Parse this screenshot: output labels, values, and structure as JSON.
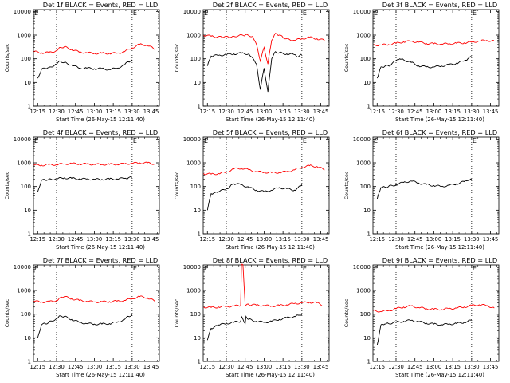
{
  "chart_data": [
    {
      "type": "line",
      "title": "Det 1f BLACK = Events, RED = LLD",
      "xlabel": "Start Time (26-May-15 12:11:40)",
      "ylabel": "Counts/sec",
      "x_ticks": [
        "12:15",
        "12:30",
        "12:45",
        "13:00",
        "13:15",
        "13:30",
        "13:45"
      ],
      "y_ticks": [
        "1",
        "10",
        "100",
        "1000",
        "10000"
      ],
      "ylim": [
        1,
        12000
      ],
      "y_scale": "log",
      "markers": [
        {
          "time": "12:30",
          "label": ""
        },
        {
          "time": "13:30",
          "label": "E"
        }
      ],
      "start_label": "E",
      "series": [
        {
          "name": "RED = LLD",
          "color": "#ff0000",
          "t": [
            12.2,
            12.3,
            12.4,
            12.5,
            12.55,
            12.6,
            12.7,
            12.8,
            12.9,
            13.0,
            13.1,
            13.2,
            13.3,
            13.4,
            13.5,
            13.6,
            13.7,
            13.8
          ],
          "values": [
            200,
            180,
            180,
            220,
            300,
            320,
            250,
            190,
            180,
            170,
            170,
            170,
            170,
            200,
            290,
            400,
            380,
            250
          ]
        },
        {
          "name": "BLACK = Events",
          "color": "#000000",
          "t": [
            12.25,
            12.3,
            12.35,
            12.4,
            12.5,
            12.55,
            12.6,
            12.7,
            12.8,
            12.9,
            13.0,
            13.1,
            13.2,
            13.3,
            13.4,
            13.45,
            13.5
          ],
          "values": [
            15,
            35,
            40,
            42,
            60,
            80,
            70,
            55,
            40,
            40,
            38,
            38,
            35,
            40,
            55,
            75,
            90
          ]
        }
      ]
    },
    {
      "type": "line",
      "title": "Det 2f BLACK = Events, RED = LLD",
      "xlabel": "Start Time (26-May-15 12:11:40)",
      "ylabel": "Counts/sec",
      "x_ticks": [
        "12:15",
        "12:30",
        "12:45",
        "13:00",
        "13:15",
        "13:30",
        "13:45"
      ],
      "y_ticks": [
        "1",
        "10",
        "100",
        "1000",
        "10000"
      ],
      "ylim": [
        1,
        12000
      ],
      "y_scale": "log",
      "markers": [
        {
          "time": "12:30",
          "label": ""
        },
        {
          "time": "13:30",
          "label": "E"
        }
      ],
      "start_label": "E",
      "series": [
        {
          "name": "RED = LLD",
          "color": "#ff0000",
          "t": [
            12.2,
            12.3,
            12.45,
            12.6,
            12.75,
            12.85,
            12.9,
            12.95,
            13.0,
            13.05,
            13.1,
            13.15,
            13.2,
            13.25,
            13.3,
            13.4,
            13.5,
            13.6,
            13.7,
            13.8
          ],
          "values": [
            1000,
            900,
            800,
            900,
            1000,
            900,
            400,
            80,
            300,
            60,
            600,
            1200,
            1000,
            800,
            700,
            600,
            700,
            800,
            700,
            600
          ]
        },
        {
          "name": "BLACK = Events",
          "color": "#000000",
          "t": [
            12.25,
            12.3,
            12.4,
            12.5,
            12.6,
            12.7,
            12.8,
            12.9,
            12.95,
            13.0,
            13.05,
            13.1,
            13.15,
            13.2,
            13.3,
            13.4,
            13.45,
            13.5
          ],
          "values": [
            50,
            130,
            140,
            150,
            160,
            170,
            160,
            60,
            5,
            40,
            4,
            100,
            200,
            180,
            160,
            150,
            120,
            150
          ]
        }
      ]
    },
    {
      "type": "line",
      "title": "Det 3f BLACK = Events, RED = LLD",
      "xlabel": "Start Time (26-May-15 12:11:40)",
      "ylabel": "Counts/sec",
      "x_ticks": [
        "12:15",
        "12:30",
        "12:45",
        "13:00",
        "13:15",
        "13:30",
        "13:45"
      ],
      "y_ticks": [
        "1",
        "10",
        "100",
        "1000",
        "10000"
      ],
      "ylim": [
        1,
        12000
      ],
      "y_scale": "log",
      "markers": [
        {
          "time": "12:30",
          "label": ""
        },
        {
          "time": "13:30",
          "label": "E"
        }
      ],
      "start_label": "E",
      "series": [
        {
          "name": "RED = LLD",
          "color": "#ff0000",
          "t": [
            12.2,
            12.3,
            12.4,
            12.5,
            12.6,
            12.7,
            12.8,
            12.9,
            13.0,
            13.1,
            13.2,
            13.3,
            13.4,
            13.5,
            13.6,
            13.7,
            13.8
          ],
          "values": [
            380,
            380,
            400,
            450,
            520,
            550,
            500,
            450,
            430,
            420,
            430,
            450,
            470,
            500,
            560,
            600,
            550
          ]
        },
        {
          "name": "BLACK = Events",
          "color": "#000000",
          "t": [
            12.25,
            12.3,
            12.35,
            12.4,
            12.5,
            12.55,
            12.6,
            12.7,
            12.8,
            12.9,
            13.0,
            13.1,
            13.2,
            13.3,
            13.4,
            13.45,
            13.5
          ],
          "values": [
            15,
            45,
            48,
            50,
            80,
            100,
            90,
            70,
            50,
            45,
            45,
            50,
            55,
            65,
            80,
            100,
            120
          ]
        }
      ]
    },
    {
      "type": "line",
      "title": "Det 4f BLACK = Events, RED = LLD",
      "xlabel": "Start Time (26-May-15 12:11:40)",
      "ylabel": "Counts/sec",
      "x_ticks": [
        "12:15",
        "12:30",
        "12:45",
        "13:00",
        "13:15",
        "13:30",
        "13:45"
      ],
      "y_ticks": [
        "1",
        "10",
        "100",
        "1000",
        "10000"
      ],
      "ylim": [
        1,
        12000
      ],
      "y_scale": "log",
      "markers": [
        {
          "time": "12:30",
          "label": ""
        },
        {
          "time": "13:30",
          "label": "E"
        }
      ],
      "start_label": "E",
      "series": [
        {
          "name": "RED = LLD",
          "color": "#ff0000",
          "t": [
            12.2,
            12.3,
            12.4,
            12.5,
            12.6,
            12.7,
            12.8,
            12.9,
            13.0,
            13.1,
            13.2,
            13.3,
            13.4,
            13.5,
            13.6,
            13.7,
            13.8
          ],
          "values": [
            800,
            800,
            820,
            850,
            900,
            920,
            900,
            880,
            860,
            850,
            860,
            880,
            900,
            950,
            1000,
            980,
            900
          ]
        },
        {
          "name": "BLACK = Events",
          "color": "#000000",
          "t": [
            12.25,
            12.3,
            12.35,
            12.4,
            12.5,
            12.6,
            12.7,
            12.8,
            12.9,
            13.0,
            13.1,
            13.2,
            13.3,
            13.4,
            13.45,
            13.5
          ],
          "values": [
            60,
            180,
            190,
            200,
            210,
            230,
            220,
            210,
            205,
            200,
            200,
            205,
            210,
            220,
            230,
            240
          ]
        }
      ]
    },
    {
      "type": "line",
      "title": "Det 5f BLACK = Events, RED = LLD",
      "xlabel": "Start Time (26-May-15 12:11:40)",
      "ylabel": "Counts/sec",
      "x_ticks": [
        "12:15",
        "12:30",
        "12:45",
        "13:00",
        "13:15",
        "13:30",
        "13:45"
      ],
      "y_ticks": [
        "1",
        "10",
        "100",
        "1000",
        "10000"
      ],
      "ylim": [
        1,
        12000
      ],
      "y_scale": "log",
      "markers": [
        {
          "time": "12:30",
          "label": ""
        },
        {
          "time": "13:30",
          "label": "E"
        }
      ],
      "start_label": "E",
      "series": [
        {
          "name": "RED = LLD",
          "color": "#ff0000",
          "t": [
            12.2,
            12.3,
            12.4,
            12.5,
            12.6,
            12.7,
            12.8,
            12.9,
            13.0,
            13.1,
            13.2,
            13.3,
            13.4,
            13.5,
            13.6,
            13.7,
            13.8
          ],
          "values": [
            350,
            330,
            350,
            400,
            550,
            600,
            500,
            420,
            400,
            380,
            390,
            420,
            500,
            650,
            750,
            700,
            500
          ]
        },
        {
          "name": "BLACK = Events",
          "color": "#000000",
          "t": [
            12.25,
            12.3,
            12.35,
            12.4,
            12.5,
            12.55,
            12.6,
            12.7,
            12.8,
            12.9,
            13.0,
            13.1,
            13.2,
            13.3,
            13.4,
            13.45,
            13.5
          ],
          "values": [
            10,
            50,
            55,
            60,
            80,
            100,
            130,
            120,
            90,
            70,
            60,
            70,
            90,
            80,
            70,
            90,
            120
          ]
        }
      ]
    },
    {
      "type": "line",
      "title": "Det 6f BLACK = Events, RED = LLD",
      "xlabel": "Start Time (26-May-15 12:11:40)",
      "ylabel": "Counts/sec",
      "x_ticks": [
        "12:15",
        "12:30",
        "12:45",
        "13:00",
        "13:15",
        "13:30",
        "13:45"
      ],
      "y_ticks": [
        "1",
        "10",
        "100",
        "1000",
        "10000"
      ],
      "ylim": [
        1,
        12000
      ],
      "y_scale": "log",
      "markers": [
        {
          "time": "12:30",
          "label": ""
        },
        {
          "time": "13:30",
          "label": "E"
        }
      ],
      "start_label": "E",
      "series": [
        {
          "name": "BLACK = Events",
          "color": "#000000",
          "t": [
            12.25,
            12.3,
            12.35,
            12.4,
            12.5,
            12.6,
            12.7,
            12.8,
            12.9,
            13.0,
            13.1,
            13.2,
            13.3,
            13.4,
            13.45,
            13.5
          ],
          "values": [
            30,
            90,
            95,
            100,
            120,
            150,
            170,
            140,
            120,
            110,
            100,
            110,
            130,
            160,
            180,
            200
          ]
        }
      ]
    },
    {
      "type": "line",
      "title": "Det 7f BLACK = Events, RED = LLD",
      "xlabel": "Start Time (26-May-15 12:11:40)",
      "ylabel": "Counts/sec",
      "x_ticks": [
        "12:15",
        "12:30",
        "12:45",
        "13:00",
        "13:15",
        "13:30",
        "13:45"
      ],
      "y_ticks": [
        "1",
        "10",
        "100",
        "1000",
        "10000"
      ],
      "ylim": [
        1,
        12000
      ],
      "y_scale": "log",
      "markers": [
        {
          "time": "12:30",
          "label": ""
        },
        {
          "time": "13:30",
          "label": "E"
        }
      ],
      "start_label": "E",
      "series": [
        {
          "name": "RED = LLD",
          "color": "#ff0000",
          "t": [
            12.2,
            12.3,
            12.4,
            12.5,
            12.55,
            12.6,
            12.7,
            12.8,
            12.9,
            13.0,
            13.1,
            13.2,
            13.3,
            13.4,
            13.5,
            13.6,
            13.7,
            13.8
          ],
          "values": [
            350,
            330,
            330,
            380,
            500,
            550,
            450,
            380,
            350,
            330,
            330,
            340,
            350,
            380,
            450,
            550,
            500,
            350
          ]
        },
        {
          "name": "BLACK = Events",
          "color": "#000000",
          "t": [
            12.25,
            12.3,
            12.35,
            12.4,
            12.5,
            12.55,
            12.6,
            12.7,
            12.8,
            12.9,
            13.0,
            13.1,
            13.2,
            13.3,
            13.4,
            13.45,
            13.5
          ],
          "values": [
            10,
            35,
            40,
            45,
            65,
            85,
            80,
            60,
            45,
            40,
            38,
            38,
            40,
            45,
            60,
            80,
            95
          ]
        }
      ]
    },
    {
      "type": "line",
      "title": "Det 8f BLACK = Events, RED = LLD",
      "xlabel": "Start Time (26-May-15 12:11:40)",
      "ylabel": "Counts/sec",
      "x_ticks": [
        "12:15",
        "12:30",
        "12:45",
        "13:00",
        "13:15",
        "13:30",
        "13:45"
      ],
      "y_ticks": [
        "1",
        "10",
        "100",
        "1000",
        "10000"
      ],
      "ylim": [
        1,
        12000
      ],
      "y_scale": "log",
      "markers": [
        {
          "time": "12:30",
          "label": ""
        },
        {
          "time": "13:30",
          "label": "E"
        }
      ],
      "start_label": "E",
      "series": [
        {
          "name": "RED = LLD",
          "color": "#ff0000",
          "t": [
            12.2,
            12.3,
            12.4,
            12.5,
            12.6,
            12.69,
            12.7,
            12.72,
            12.75,
            12.76,
            12.8,
            12.9,
            13.0,
            13.1,
            13.2,
            13.3,
            13.4,
            13.5,
            13.6,
            13.7,
            13.8
          ],
          "values": [
            200,
            190,
            200,
            210,
            220,
            230,
            12000,
            12000,
            230,
            240,
            250,
            240,
            230,
            220,
            230,
            250,
            280,
            300,
            320,
            300,
            220
          ]
        },
        {
          "name": "BLACK = Events",
          "color": "#000000",
          "t": [
            12.25,
            12.3,
            12.35,
            12.4,
            12.5,
            12.6,
            12.69,
            12.7,
            12.75,
            12.76,
            12.8,
            12.9,
            13.0,
            13.1,
            13.2,
            13.3,
            13.4,
            13.45,
            13.5
          ],
          "values": [
            8,
            25,
            30,
            35,
            40,
            45,
            50,
            80,
            40,
            80,
            60,
            50,
            45,
            50,
            60,
            70,
            80,
            90,
            100
          ]
        }
      ]
    },
    {
      "type": "line",
      "title": "Det 9f BLACK = Events, RED = LLD",
      "xlabel": "Start Time (26-May-15 12:11:40)",
      "ylabel": "Counts/sec",
      "x_ticks": [
        "12:15",
        "12:30",
        "12:45",
        "13:00",
        "13:15",
        "13:30",
        "13:45"
      ],
      "y_ticks": [
        "1",
        "10",
        "100",
        "1000",
        "10000"
      ],
      "ylim": [
        1,
        12000
      ],
      "y_scale": "log",
      "markers": [
        {
          "time": "12:30",
          "label": ""
        },
        {
          "time": "13:30",
          "label": "E"
        }
      ],
      "start_label": "E",
      "series": [
        {
          "name": "RED = LLD",
          "color": "#ff0000",
          "t": [
            12.2,
            12.3,
            12.4,
            12.5,
            12.6,
            12.7,
            12.8,
            12.9,
            13.0,
            13.1,
            13.2,
            13.3,
            13.4,
            13.5,
            13.6,
            13.7,
            13.8
          ],
          "values": [
            140,
            130,
            140,
            170,
            200,
            220,
            190,
            170,
            160,
            160,
            170,
            180,
            200,
            230,
            250,
            230,
            180
          ]
        },
        {
          "name": "BLACK = Events",
          "color": "#000000",
          "t": [
            12.25,
            12.3,
            12.35,
            12.4,
            12.5,
            12.6,
            12.7,
            12.8,
            12.9,
            13.0,
            13.1,
            13.2,
            13.3,
            13.4,
            13.45,
            13.5
          ],
          "values": [
            5,
            35,
            38,
            40,
            45,
            50,
            55,
            48,
            42,
            38,
            36,
            38,
            40,
            45,
            50,
            60
          ]
        }
      ]
    }
  ]
}
